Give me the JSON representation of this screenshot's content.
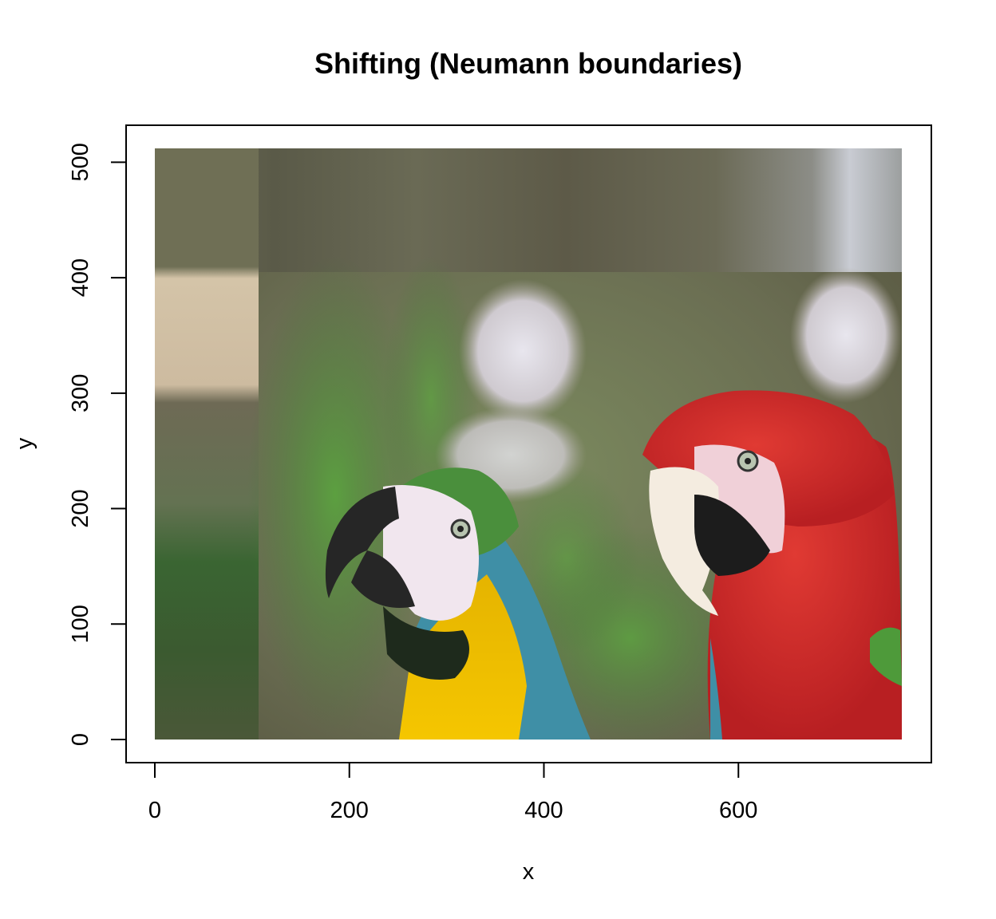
{
  "chart_data": {
    "type": "image",
    "title": "Shifting (Neumann boundaries)",
    "xlabel": "x",
    "ylabel": "y",
    "xlim": [
      0,
      768
    ],
    "ylim": [
      0,
      512
    ],
    "xticks": [
      0,
      200,
      400,
      600
    ],
    "yticks": [
      0,
      100,
      200,
      300,
      400,
      500
    ],
    "xtick_labels": [
      "0",
      "200",
      "400",
      "600"
    ],
    "ytick_labels": [
      "0",
      "100",
      "200",
      "300",
      "400",
      "500"
    ],
    "image_extent": {
      "x": [
        0,
        768
      ],
      "y": [
        0,
        512
      ]
    },
    "image_content": "two macaws (blue-and-yellow and red-and-green) on a blurred green background, shifted with edge pixels replicated along the left and top borders",
    "grid": false,
    "legend": "none"
  },
  "colors": {
    "axis": "#000000",
    "background": "#ffffff",
    "macaw_red": "#cc2a2a",
    "macaw_yellow": "#f2c200",
    "macaw_blue": "#3f8fa6",
    "foliage_green": "#4f8a3a"
  }
}
